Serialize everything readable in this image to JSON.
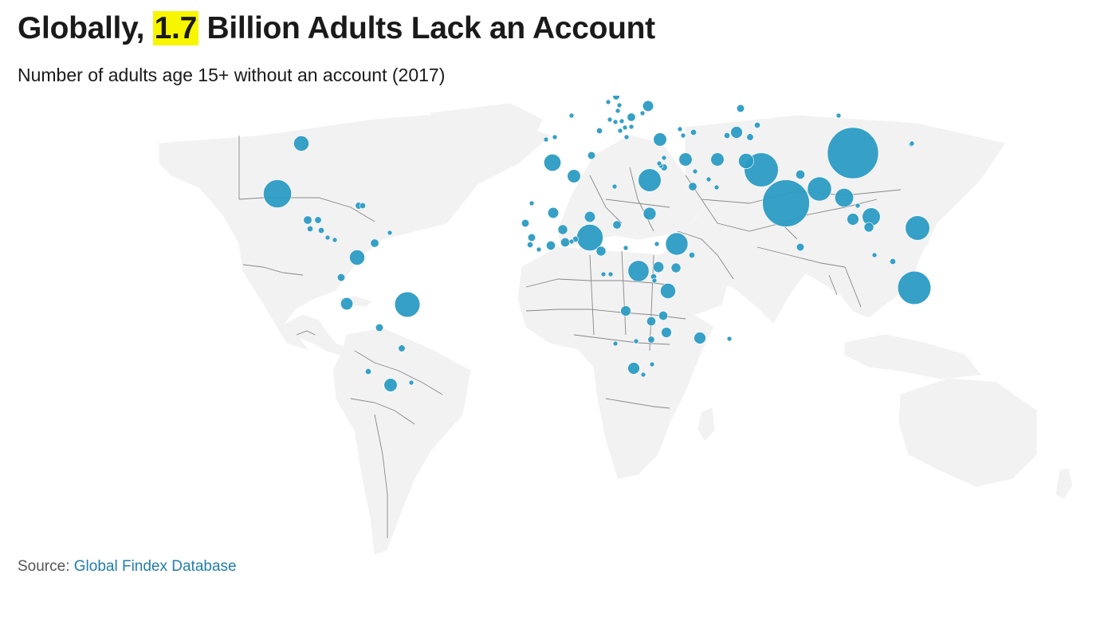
{
  "header": {
    "title_prefix": "Globally, ",
    "title_highlight": "1.7",
    "title_suffix": " Billion Adults Lack an Account",
    "subtitle": "Number of adults age 15+ without an account (2017)"
  },
  "footer": {
    "source_label": "Source: ",
    "source_link": "Global Findex Database"
  },
  "style": {
    "bubble_color": "#2b9bc3",
    "highlight_color": "#f8f500",
    "land_color": "#f2f2f2",
    "border_color": "#888888",
    "link_color": "#1f7eaa"
  },
  "map": {
    "projection": "world-equirectangular",
    "markers": [
      {
        "region": "China",
        "value": 225
      },
      {
        "region": "India",
        "value": 190
      },
      {
        "region": "Pakistan",
        "value": 100
      },
      {
        "region": "Indonesia",
        "value": 95
      },
      {
        "region": "Nigeria",
        "value": 60
      },
      {
        "region": "Bangladesh",
        "value": 50
      },
      {
        "region": "Brazil",
        "value": 55
      },
      {
        "region": "Mexico",
        "value": 68
      },
      {
        "region": "Philippines",
        "value": 51
      },
      {
        "region": "Myanmar",
        "value": 30
      },
      {
        "region": "Ethiopia",
        "value": 43
      },
      {
        "region": "Egypt",
        "value": 45
      },
      {
        "region": "Vietnam",
        "value": 28
      },
      {
        "region": "DR Congo",
        "value": 38
      },
      {
        "region": "Iran",
        "value": 15
      },
      {
        "region": "Afghanistan",
        "value": 20
      },
      {
        "region": "Colombia",
        "value": 20
      },
      {
        "region": "Morocco",
        "value": 25
      },
      {
        "region": "Russia",
        "value": 24
      },
      {
        "region": "Tanzania",
        "value": 20
      },
      {
        "region": "United States",
        "value": 20
      },
      {
        "region": "Argentina",
        "value": 15
      },
      {
        "region": "Peru",
        "value": 13
      },
      {
        "region": "Thailand",
        "value": 12
      },
      {
        "region": "Algeria",
        "value": 15
      },
      {
        "region": "Sudan",
        "value": 14
      },
      {
        "region": "Turkey",
        "value": 15
      },
      {
        "region": "South Africa",
        "value": 12
      },
      {
        "region": "Madagascar",
        "value": 12
      },
      {
        "region": "Uganda",
        "value": 10
      },
      {
        "region": "Iraq",
        "value": 15
      },
      {
        "region": "Kenya",
        "value": 8
      },
      {
        "region": "Uzbekistan",
        "value": 12
      },
      {
        "region": "Ukraine",
        "value": 10
      },
      {
        "region": "Niger",
        "value": 10
      },
      {
        "region": "Mali",
        "value": 10
      },
      {
        "region": "Burkina Faso",
        "value": 8
      },
      {
        "region": "Ghana",
        "value": 7
      },
      {
        "region": "Cameroon",
        "value": 8
      },
      {
        "region": "Mozambique",
        "value": 9
      },
      {
        "region": "Malawi",
        "value": 7
      },
      {
        "region": "Zambia",
        "value": 7
      },
      {
        "region": "Angola",
        "value": 9
      },
      {
        "region": "Cambodia",
        "value": 8
      },
      {
        "region": "Nepal",
        "value": 7
      },
      {
        "region": "Sri Lanka",
        "value": 5
      },
      {
        "region": "Venezuela",
        "value": 6
      },
      {
        "region": "Ecuador",
        "value": 5
      },
      {
        "region": "Bolivia",
        "value": 5
      },
      {
        "region": "Paraguay",
        "value": 4
      },
      {
        "region": "Chile",
        "value": 3
      },
      {
        "region": "Uruguay",
        "value": 2
      },
      {
        "region": "Guatemala",
        "value": 6
      },
      {
        "region": "Honduras",
        "value": 4
      },
      {
        "region": "Nicaragua",
        "value": 3
      },
      {
        "region": "El Salvador",
        "value": 3
      },
      {
        "region": "Costa Rica",
        "value": 2
      },
      {
        "region": "Panama",
        "value": 2
      },
      {
        "region": "Dominican Republic",
        "value": 3
      },
      {
        "region": "Haiti",
        "value": 4
      },
      {
        "region": "Trinidad and Tobago",
        "value": 1
      },
      {
        "region": "Romania",
        "value": 6
      },
      {
        "region": "Poland",
        "value": 4
      },
      {
        "region": "Hungary",
        "value": 2
      },
      {
        "region": "Bulgaria",
        "value": 2
      },
      {
        "region": "Serbia",
        "value": 2
      },
      {
        "region": "Greece",
        "value": 2
      },
      {
        "region": "Italy",
        "value": 3
      },
      {
        "region": "Spain",
        "value": 2
      },
      {
        "region": "France",
        "value": 2
      },
      {
        "region": "Portugal",
        "value": 1
      },
      {
        "region": "Lithuania",
        "value": 1
      },
      {
        "region": "Latvia",
        "value": 1
      },
      {
        "region": "Belarus",
        "value": 2
      },
      {
        "region": "Moldova",
        "value": 1
      },
      {
        "region": "Slovakia",
        "value": 1
      },
      {
        "region": "Czech Republic",
        "value": 1
      },
      {
        "region": "Croatia",
        "value": 1
      },
      {
        "region": "Bosnia and Herzegovina",
        "value": 1
      },
      {
        "region": "Albania",
        "value": 1
      },
      {
        "region": "North Macedonia",
        "value": 1
      },
      {
        "region": "Georgia",
        "value": 1
      },
      {
        "region": "Armenia",
        "value": 1
      },
      {
        "region": "Azerbaijan",
        "value": 3
      },
      {
        "region": "Kazakhstan",
        "value": 5
      },
      {
        "region": "Kyrgyzstan",
        "value": 3
      },
      {
        "region": "Tajikistan",
        "value": 4
      },
      {
        "region": "Turkmenistan",
        "value": 3
      },
      {
        "region": "Mongolia",
        "value": 0.5
      },
      {
        "region": "Tunisia",
        "value": 5
      },
      {
        "region": "Libya",
        "value": 2
      },
      {
        "region": "Lebanon",
        "value": 2
      },
      {
        "region": "Jordan",
        "value": 4
      },
      {
        "region": "Israel",
        "value": 0.5
      },
      {
        "region": "West Bank and Gaza",
        "value": 2
      },
      {
        "region": "Saudi Arabia",
        "value": 6
      },
      {
        "region": "Kuwait",
        "value": 0.5
      },
      {
        "region": "Bahrain",
        "value": 0.3
      },
      {
        "region": "United Arab Emirates",
        "value": 1
      },
      {
        "region": "Senegal",
        "value": 5
      },
      {
        "region": "Mauritania",
        "value": 2
      },
      {
        "region": "Guinea",
        "value": 5
      },
      {
        "region": "Sierra Leone",
        "value": 3
      },
      {
        "region": "Liberia",
        "value": 2
      },
      {
        "region": "Cote d'Ivoire",
        "value": 7
      },
      {
        "region": "Togo",
        "value": 2
      },
      {
        "region": "Benin",
        "value": 3
      },
      {
        "region": "Chad",
        "value": 6
      },
      {
        "region": "Central African Republic",
        "value": 2
      },
      {
        "region": "South Sudan",
        "value": 2
      },
      {
        "region": "Somalia",
        "value": 3
      },
      {
        "region": "Rwanda",
        "value": 3
      },
      {
        "region": "Burundi",
        "value": 2
      },
      {
        "region": "Gabon",
        "value": 1
      },
      {
        "region": "Congo, Rep.",
        "value": 2
      },
      {
        "region": "Zimbabwe",
        "value": 4
      },
      {
        "region": "Botswana",
        "value": 1
      },
      {
        "region": "Namibia",
        "value": 1
      },
      {
        "region": "Lesotho",
        "value": 1
      },
      {
        "region": "Eswatini",
        "value": 0.5
      },
      {
        "region": "Mauritius",
        "value": 0.3
      },
      {
        "region": "Lao PDR",
        "value": 2
      },
      {
        "region": "Malaysia",
        "value": 3
      },
      {
        "region": "Singapore",
        "value": 0.3
      },
      {
        "region": "South Korea",
        "value": 0.5
      },
      {
        "region": "Japan",
        "value": 2
      }
    ]
  }
}
